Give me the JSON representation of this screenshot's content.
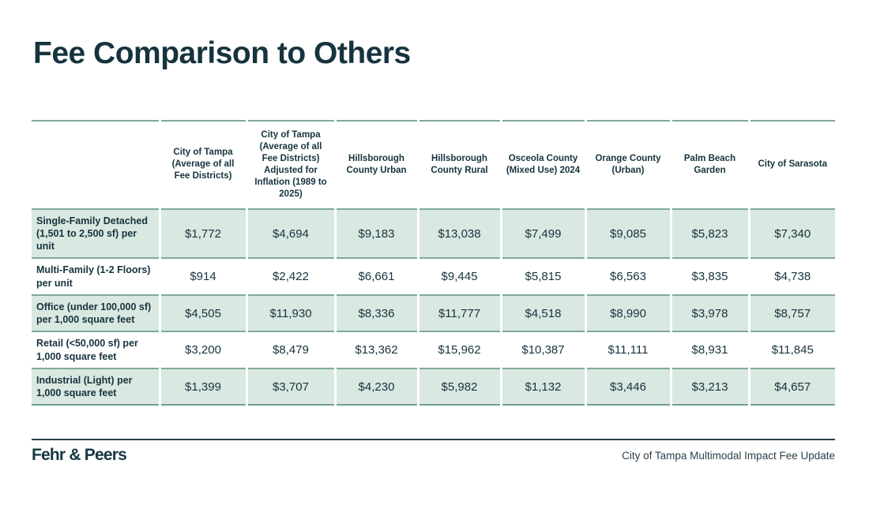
{
  "page": {
    "title": "Fee Comparison to Others",
    "footer": {
      "brand": "Fehr & Peers",
      "project": "City of Tampa Multimodal Impact Fee Update"
    },
    "colors": {
      "text_dark": "#16333e",
      "row_green": "#d9e8e1",
      "border_green": "#7dab97",
      "footer_line": "#2e3f4a"
    }
  },
  "chart_data": {
    "type": "table",
    "title": "Fee Comparison to Others",
    "columns": [
      "City of Tampa (Average of all Fee Districts)",
      "City of Tampa (Average of all Fee Districts) Adjusted for Inflation (1989 to 2025)",
      "Hillsborough County Urban",
      "Hillsborough County Rural",
      "Osceola County (Mixed Use) 2024",
      "Orange County (Urban)",
      "Palm Beach Garden",
      "City of Sarasota"
    ],
    "rows": [
      {
        "label": "Single-Family Detached (1,501 to 2,500 sf) per unit",
        "values": [
          "$1,772",
          "$4,694",
          "$9,183",
          "$13,038",
          "$7,499",
          "$9,085",
          "$5,823",
          "$7,340"
        ]
      },
      {
        "label": "Multi-Family (1-2 Floors) per unit",
        "values": [
          "$914",
          "$2,422",
          "$6,661",
          "$9,445",
          "$5,815",
          "$6,563",
          "$3,835",
          "$4,738"
        ]
      },
      {
        "label": "Office (under 100,000 sf) per 1,000 square feet",
        "values": [
          "$4,505",
          "$11,930",
          "$8,336",
          "$11,777",
          "$4,518",
          "$8,990",
          "$3,978",
          "$8,757"
        ]
      },
      {
        "label": "Retail (<50,000 sf) per 1,000 square feet",
        "values": [
          "$3,200",
          "$8,479",
          "$13,362",
          "$15,962",
          "$10,387",
          "$11,111",
          "$8,931",
          "$11,845"
        ]
      },
      {
        "label": "Industrial (Light) per 1,000 square feet",
        "values": [
          "$1,399",
          "$3,707",
          "$4,230",
          "$5,982",
          "$1,132",
          "$3,446",
          "$3,213",
          "$4,657"
        ]
      }
    ]
  }
}
